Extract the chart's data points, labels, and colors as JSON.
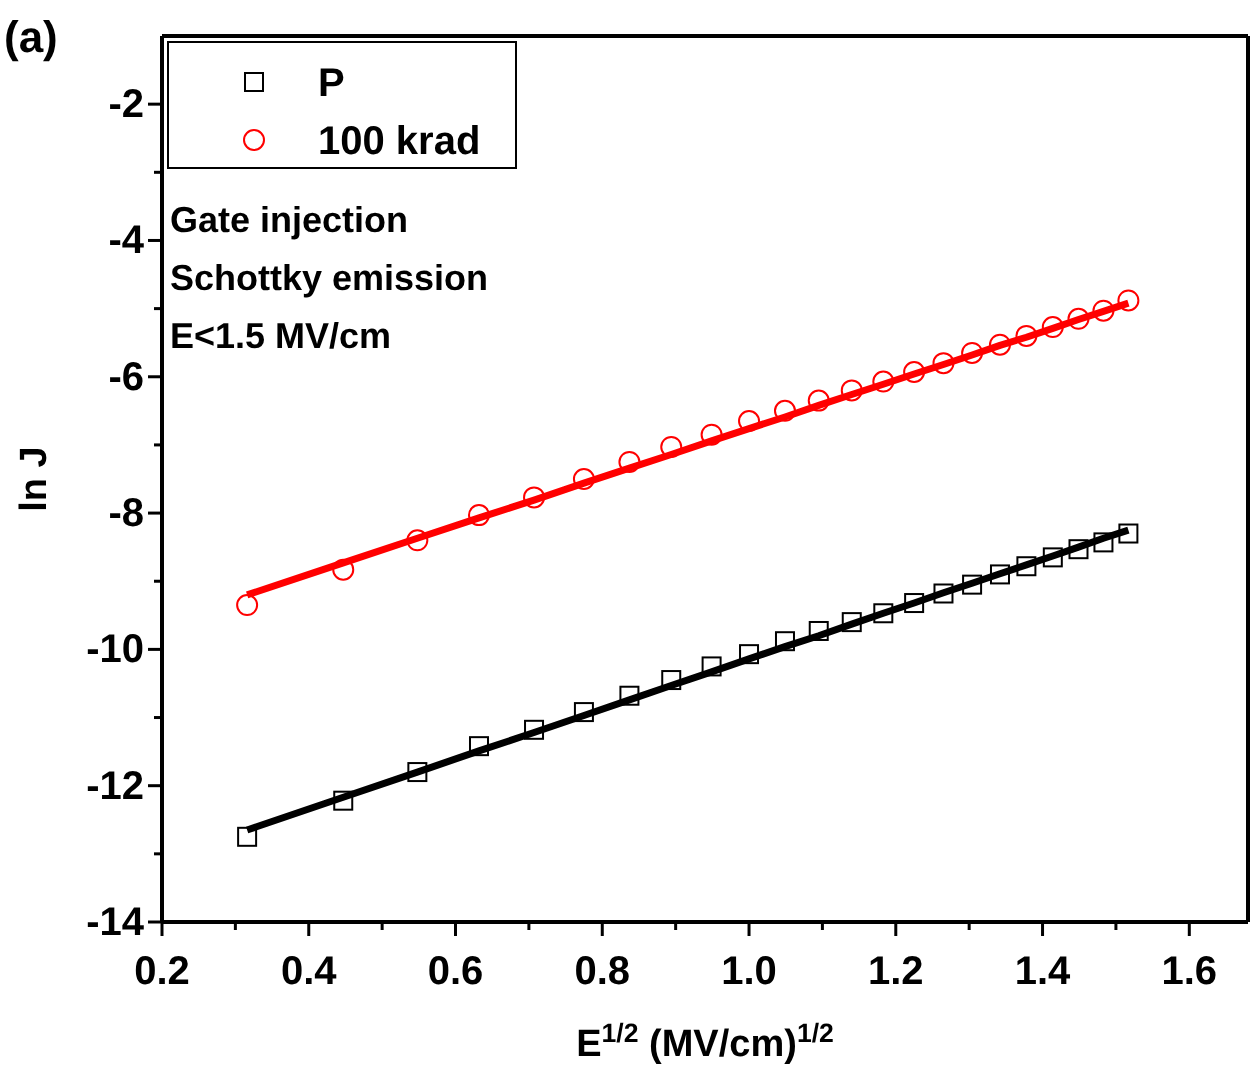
{
  "chart_data": {
    "type": "scatter",
    "xlabel": "E$^{1/2}$ (MV/cm)$^{1/2}$",
    "ylabel": "ln J",
    "annotations": [
      "(a)",
      "Gate injection",
      "Schottky emission",
      "E<1.5 MV/cm"
    ],
    "x": [
      0.316,
      0.447,
      0.548,
      0.632,
      0.707,
      0.775,
      0.837,
      0.894,
      0.949,
      1.0,
      1.049,
      1.095,
      1.14,
      1.183,
      1.225,
      1.265,
      1.304,
      1.342,
      1.378,
      1.414,
      1.449,
      1.483,
      1.517
    ],
    "series": [
      {
        "name": "P",
        "color": "#000000",
        "marker": "square",
        "values": [
          -12.75,
          -12.22,
          -11.8,
          -11.42,
          -11.18,
          -10.92,
          -10.68,
          -10.45,
          -10.25,
          -10.07,
          -9.88,
          -9.73,
          -9.6,
          -9.47,
          -9.32,
          -9.18,
          -9.05,
          -8.9,
          -8.78,
          -8.65,
          -8.53,
          -8.43,
          -8.3
        ]
      },
      {
        "name": "100 krad",
        "color": "#ff0000",
        "marker": "circle",
        "values": [
          -9.35,
          -8.83,
          -8.4,
          -8.03,
          -7.77,
          -7.5,
          -7.25,
          -7.03,
          -6.85,
          -6.65,
          -6.5,
          -6.35,
          -6.2,
          -6.07,
          -5.93,
          -5.8,
          -5.65,
          -5.53,
          -5.4,
          -5.27,
          -5.15,
          -5.03,
          -4.88
        ]
      },
      {
        "type": "line",
        "color": "#000000",
        "values": [
          -12.65,
          -12.17,
          -11.8,
          -11.49,
          -11.22,
          -10.97,
          -10.74,
          -10.53,
          -10.33,
          -10.14,
          -9.96,
          -9.8,
          -9.63,
          -9.47,
          -9.32,
          -9.17,
          -9.03,
          -8.89,
          -8.76,
          -8.63,
          -8.5,
          -8.37,
          -8.25
        ]
      },
      {
        "type": "line",
        "color": "#ff0000",
        "values": [
          -9.2,
          -8.73,
          -8.37,
          -8.07,
          -7.81,
          -7.56,
          -7.34,
          -7.14,
          -6.94,
          -6.76,
          -6.59,
          -6.42,
          -6.26,
          -6.11,
          -5.96,
          -5.82,
          -5.68,
          -5.54,
          -5.42,
          -5.29,
          -5.16,
          -5.04,
          -4.92
        ]
      }
    ],
    "xlim": [
      0.2,
      1.68
    ],
    "ylim": [
      -14,
      -1
    ],
    "xticks": [
      {
        "value": 0.2,
        "label": "0.2"
      },
      {
        "value": 0.3,
        "label": null
      },
      {
        "value": 0.4,
        "label": "0.4"
      },
      {
        "value": 0.5,
        "label": null
      },
      {
        "value": 0.6,
        "label": "0.6"
      },
      {
        "value": 0.7,
        "label": null
      },
      {
        "value": 0.8,
        "label": "0.8"
      },
      {
        "value": 0.9,
        "label": null
      },
      {
        "value": 1.0,
        "label": "1.0"
      },
      {
        "value": 1.1,
        "label": null
      },
      {
        "value": 1.2,
        "label": "1.2"
      },
      {
        "value": 1.3,
        "label": null
      },
      {
        "value": 1.4,
        "label": "1.4"
      },
      {
        "value": 1.5,
        "label": null
      },
      {
        "value": 1.6,
        "label": "1.6"
      }
    ],
    "yticks": [
      -14,
      {
        "value": -13,
        "label": null
      },
      -12,
      {
        "value": -11,
        "label": null
      },
      -10,
      {
        "value": -9,
        "label": null
      },
      -8,
      {
        "value": -7,
        "label": null
      },
      -6,
      {
        "value": -5,
        "label": null
      },
      -4,
      {
        "value": -3,
        "label": null
      },
      -2
    ],
    "legend": "top left",
    "grid": false
  }
}
